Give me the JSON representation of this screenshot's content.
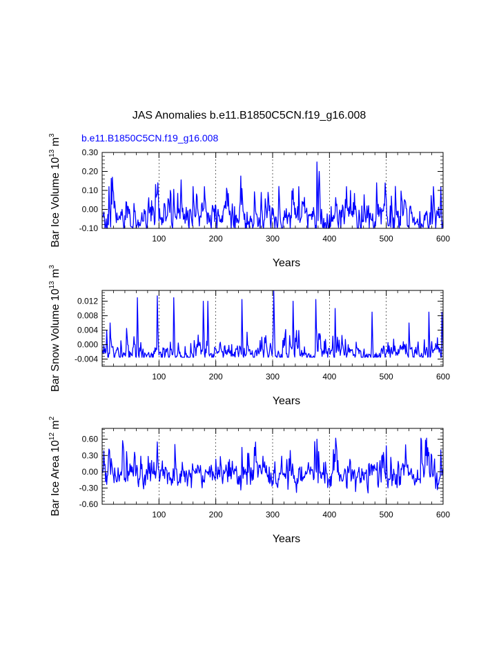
{
  "title": "JAS Anomalies b.e11.B1850C5CN.f19_g16.008",
  "series_label": "b.e11.B1850C5CN.f19_g16.008",
  "colors": {
    "series": "#0000ff",
    "axis": "#000000",
    "grid": "#000000"
  },
  "chart_data": [
    {
      "type": "line",
      "name": "ice-volume",
      "ylabel": {
        "main": "Bar Ice Volume 10",
        "exp": "13",
        "unit": " m",
        "unit_exp": "3"
      },
      "xlabel": "Years",
      "xlim": [
        0,
        600
      ],
      "ylim": [
        -0.1,
        0.3
      ],
      "xticks": [
        100,
        200,
        300,
        400,
        500,
        600
      ],
      "xtick_labels": [
        "100",
        "200",
        "300",
        "400",
        "500",
        "600"
      ],
      "yticks": [
        -0.1,
        0.0,
        0.1,
        0.2,
        0.3
      ],
      "ytick_labels": [
        "-0.10",
        "0.00",
        "0.10",
        "0.20",
        "0.30"
      ],
      "grid_x": [
        100,
        200,
        300,
        400,
        500
      ],
      "series": [
        {
          "name": "b.e11.B1850C5CN.f19_g16.008",
          "x_start": 1,
          "x_step": 1,
          "n": 600,
          "baseline": -0.05,
          "scale": 0.05,
          "clip": [
            -0.1,
            0.3
          ],
          "peaks": [
            [
              12,
              0.12
            ],
            [
              98,
              0.14
            ],
            [
              120,
              0.1
            ],
            [
              180,
              0.12
            ],
            [
              246,
              0.11
            ],
            [
              346,
              0.12
            ],
            [
              378,
              0.25
            ],
            [
              382,
              0.2
            ],
            [
              430,
              0.12
            ],
            [
              483,
              0.14
            ],
            [
              583,
              0.12
            ],
            [
              596,
              0.12
            ]
          ]
        }
      ]
    },
    {
      "type": "line",
      "name": "snow-volume",
      "ylabel": {
        "main": "Bar Snow Volume 10",
        "exp": "13",
        "unit": " m",
        "unit_exp": "3"
      },
      "xlabel": "Years",
      "xlim": [
        0,
        600
      ],
      "ylim": [
        -0.006,
        0.015
      ],
      "xticks": [
        100,
        200,
        300,
        400,
        500,
        600
      ],
      "xtick_labels": [
        "100",
        "200",
        "300",
        "400",
        "500",
        "600"
      ],
      "yticks": [
        -0.004,
        0.0,
        0.004,
        0.008,
        0.012
      ],
      "ytick_labels": [
        "-0.004",
        "0.000",
        "0.004",
        "0.008",
        "0.012"
      ],
      "grid_x": [
        100,
        200,
        300,
        400,
        500
      ],
      "series": [
        {
          "name": "b.e11.B1850C5CN.f19_g16.008",
          "x_start": 1,
          "x_step": 1,
          "n": 600,
          "baseline": -0.0025,
          "scale": 0.0015,
          "clip": [
            -0.0035,
            0.015
          ],
          "peaks": [
            [
              8,
              0.004
            ],
            [
              14,
              0.006
            ],
            [
              62,
              0.013
            ],
            [
              97,
              0.0135
            ],
            [
              126,
              0.013
            ],
            [
              178,
              0.012
            ],
            [
              186,
              0.012
            ],
            [
              246,
              0.0125
            ],
            [
              302,
              0.0148
            ],
            [
              336,
              0.012
            ],
            [
              376,
              0.0125
            ],
            [
              410,
              0.01
            ],
            [
              475,
              0.009
            ],
            [
              540,
              0.006
            ],
            [
              575,
              0.009
            ],
            [
              598,
              0.009
            ]
          ]
        }
      ]
    },
    {
      "type": "line",
      "name": "ice-area",
      "ylabel": {
        "main": "Bar Ice Area 10",
        "exp": "12",
        "unit": " m",
        "unit_exp": "2"
      },
      "xlabel": "Years",
      "xlim": [
        0,
        600
      ],
      "ylim": [
        -0.6,
        0.8
      ],
      "xticks": [
        100,
        200,
        300,
        400,
        500,
        600
      ],
      "xtick_labels": [
        "100",
        "200",
        "300",
        "400",
        "500",
        "600"
      ],
      "yticks": [
        -0.6,
        -0.3,
        0.0,
        0.3,
        0.6
      ],
      "ytick_labels": [
        "-0.60",
        "-0.30",
        "0.00",
        "0.30",
        "0.60"
      ],
      "grid_x": [
        100,
        200,
        300,
        400,
        500
      ],
      "series": [
        {
          "name": "b.e11.B1850C5CN.f19_g16.008",
          "x_start": 1,
          "x_step": 1,
          "n": 600,
          "baseline": -0.05,
          "scale": 0.17,
          "clip": [
            -0.48,
            0.62
          ],
          "peaks": [
            [
              12,
              0.42
            ],
            [
              97,
              0.55
            ],
            [
              246,
              0.45
            ],
            [
              268,
              0.45
            ],
            [
              378,
              0.6
            ],
            [
              412,
              0.5
            ],
            [
              500,
              0.48
            ],
            [
              596,
              0.4
            ]
          ]
        }
      ]
    }
  ]
}
